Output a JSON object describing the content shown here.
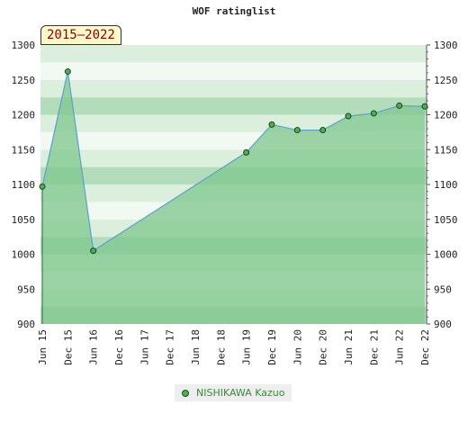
{
  "title": "WOF ratinglist",
  "badge": "2015–2022",
  "legend": {
    "label": "NISHIKAWA Kazuo"
  },
  "colors": {
    "band_light": "#f2f8f2",
    "band_pale": "#dcefdc",
    "band_mid": "#b3dcbb",
    "fill_area": "#7ec78e",
    "line": "#5aa0d0",
    "marker": "#4caf50"
  },
  "chart_data": {
    "type": "area",
    "title": "WOF ratinglist",
    "categories": [
      "Jun 15",
      "Dec 15",
      "Jun 16",
      "Dec 16",
      "Jun 17",
      "Dec 17",
      "Jun 18",
      "Dec 18",
      "Jun 19",
      "Dec 19",
      "Jun 20",
      "Dec 20",
      "Jun 21",
      "Dec 21",
      "Jun 22",
      "Dec 22"
    ],
    "series": [
      {
        "name": "NISHIKAWA Kazuo",
        "values": [
          1097,
          1262,
          1005,
          null,
          null,
          null,
          null,
          null,
          1146,
          1186,
          1178,
          1178,
          1198,
          1202,
          1213,
          1212
        ]
      }
    ],
    "ylim": [
      900,
      1300
    ],
    "yticks": [
      900,
      950,
      1000,
      1050,
      1100,
      1150,
      1200,
      1250,
      1300
    ],
    "grid": true,
    "legend_position": "bottom"
  }
}
